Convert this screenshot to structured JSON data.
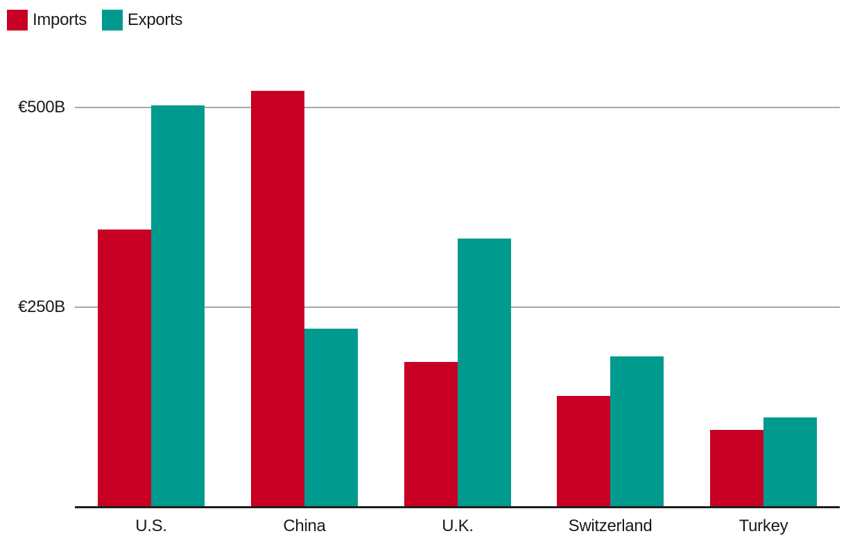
{
  "chart_data": {
    "type": "bar",
    "title": "",
    "categories": [
      "U.S.",
      "China",
      "U.K.",
      "Switzerland",
      "Turkey"
    ],
    "series": [
      {
        "name": "Imports",
        "color": "#c80023",
        "values": [
          347,
          521,
          181,
          139,
          96
        ]
      },
      {
        "name": "Exports",
        "color": "#009a8e",
        "values": [
          503,
          223,
          336,
          188,
          112
        ]
      }
    ],
    "unit": "billions of euros",
    "yticks": [
      {
        "value": 250,
        "label": "€250B"
      },
      {
        "value": 500,
        "label": "€500B"
      }
    ],
    "ylim": [
      0,
      540
    ],
    "grid": "horizontal-only",
    "legend_position": "top-left",
    "colors": {
      "gridline": "#a6a6a6",
      "axis_line": "#1d1d1b",
      "text": "#1a1a1a",
      "background": "#ffffff"
    }
  }
}
